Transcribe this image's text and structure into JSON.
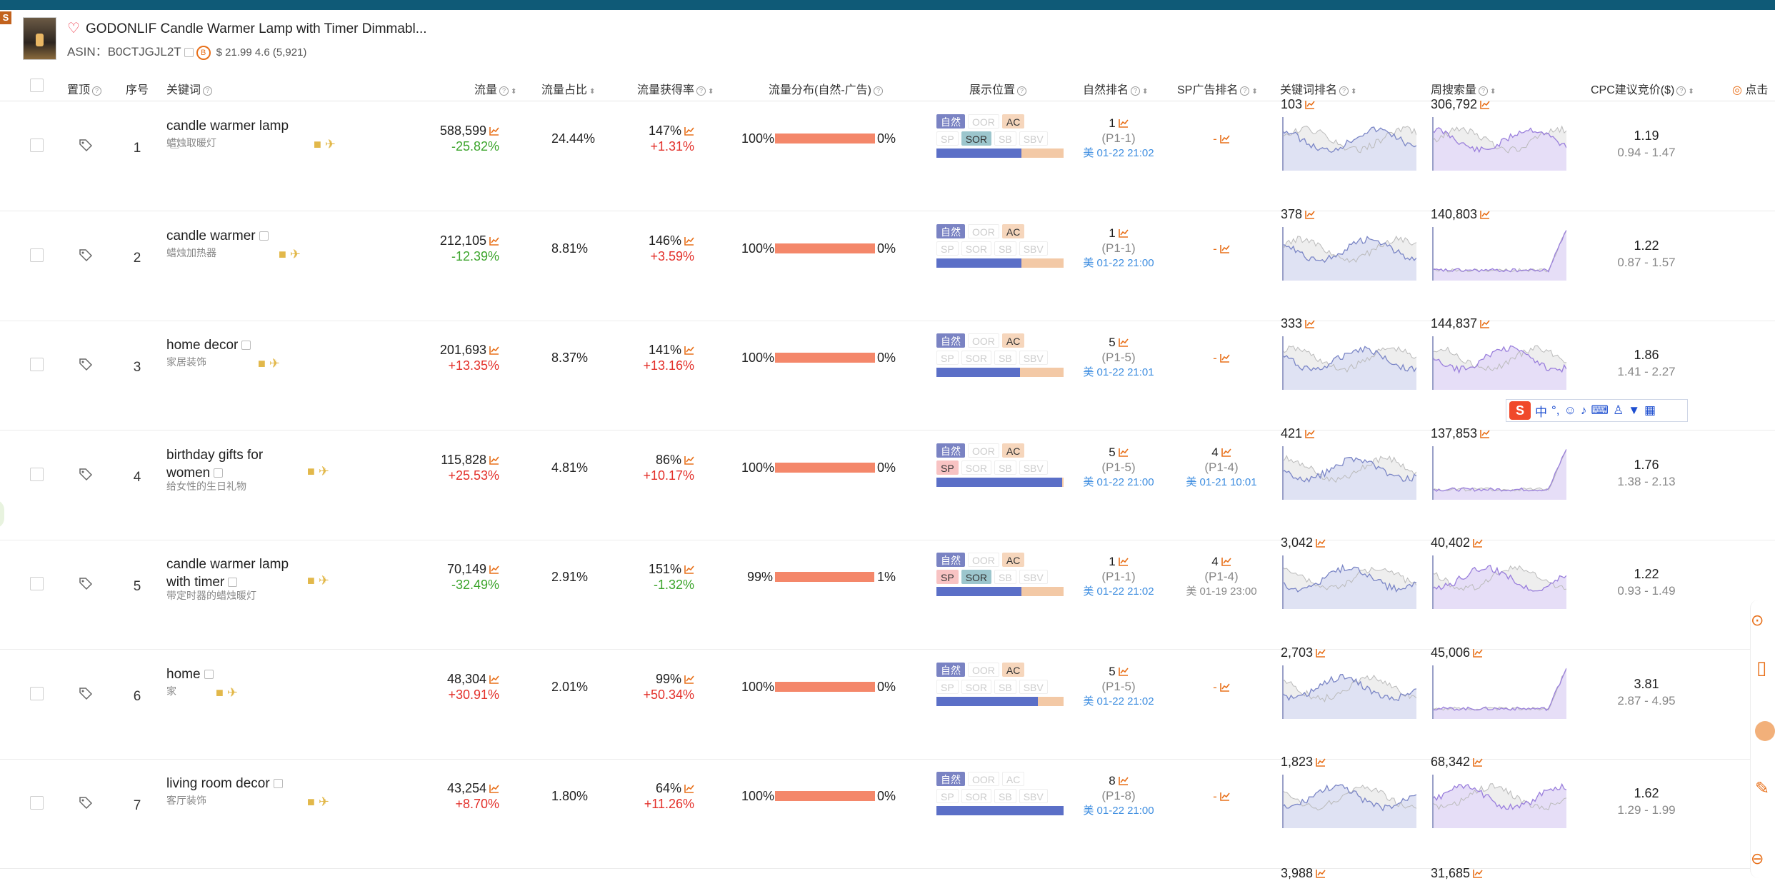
{
  "top_badge": "S",
  "product": {
    "title": "GODONLIF Candle Warmer Lamp with Timer Dimmabl...",
    "asin_label": "ASIN：",
    "asin": "B0CTJGJL2T",
    "badge": "B",
    "price_rating": "$ 21.99 4.6 (5,921)"
  },
  "headers": {
    "pin": "置顶",
    "index": "序号",
    "keyword": "关键词",
    "traffic": "流量",
    "traffic_share": "流量占比",
    "capture_rate": "流量获得率",
    "distribution": "流量分布(自然-广告)",
    "placement": "展示位置",
    "natural_rank": "自然排名",
    "sp_rank": "SP广告排名",
    "keyword_rank": "关键词排名",
    "weekly_search": "周搜索量",
    "cpc": "CPC建议竞价($)",
    "click": "点击"
  },
  "chip_labels": {
    "z": "自然",
    "oor": "OOR",
    "ac": "AC",
    "sp": "SP",
    "sor": "SOR",
    "sb": "SB",
    "sbv": "SBV"
  },
  "rows": [
    {
      "index": "1",
      "keyword": "candle warmer lamp",
      "keyword_cn": "蜡烛取暖灯",
      "traffic": "588,599",
      "traffic_change": "-25.82%",
      "share": "24.44%",
      "rate": "147%",
      "rate_change": "+1.31%",
      "nat_pct": "100%",
      "ad_pct": "0%",
      "nat_frac": 1.0,
      "chips": {
        "z": true,
        "oor": false,
        "ac": true,
        "sp": false,
        "sor": true,
        "sb": false,
        "sbv": false
      },
      "pos_frac": 0.67,
      "nat_rank": "1",
      "nat_page": "(P1-1)",
      "nat_time": "美 01-22 21:02",
      "sp_rank": "",
      "sp_page": "",
      "sp_time": "",
      "kw_rank": "103",
      "weekly": "306,792",
      "cpc": "1.19",
      "cpc_range": "0.94 - 1.47"
    },
    {
      "index": "2",
      "keyword": "candle warmer",
      "keyword_cn": "蜡烛加热器",
      "traffic": "212,105",
      "traffic_change": "-12.39%",
      "share": "8.81%",
      "rate": "146%",
      "rate_change": "+3.59%",
      "nat_pct": "100%",
      "ad_pct": "0%",
      "nat_frac": 1.0,
      "chips": {
        "z": true,
        "oor": false,
        "ac": true,
        "sp": false,
        "sor": false,
        "sb": false,
        "sbv": false
      },
      "pos_frac": 0.67,
      "nat_rank": "1",
      "nat_page": "(P1-1)",
      "nat_time": "美 01-22 21:00",
      "sp_rank": "",
      "sp_page": "",
      "sp_time": "",
      "kw_rank": "378",
      "weekly": "140,803",
      "cpc": "1.22",
      "cpc_range": "0.87 - 1.57"
    },
    {
      "index": "3",
      "keyword": "home decor",
      "keyword_cn": "家居装饰",
      "traffic": "201,693",
      "traffic_change": "+13.35%",
      "share": "8.37%",
      "rate": "141%",
      "rate_change": "+13.16%",
      "nat_pct": "100%",
      "ad_pct": "0%",
      "nat_frac": 1.0,
      "chips": {
        "z": true,
        "oor": false,
        "ac": true,
        "sp": false,
        "sor": false,
        "sb": false,
        "sbv": false
      },
      "pos_frac": 0.66,
      "nat_rank": "5",
      "nat_page": "(P1-5)",
      "nat_time": "美 01-22 21:01",
      "sp_rank": "",
      "sp_page": "",
      "sp_time": "",
      "kw_rank": "333",
      "weekly": "144,837",
      "cpc": "1.86",
      "cpc_range": "1.41 - 2.27"
    },
    {
      "index": "4",
      "keyword": "birthday gifts for women",
      "keyword_cn": "给女性的生日礼物",
      "traffic": "115,828",
      "traffic_change": "+25.53%",
      "share": "4.81%",
      "rate": "86%",
      "rate_change": "+10.17%",
      "nat_pct": "100%",
      "ad_pct": "0%",
      "nat_frac": 1.0,
      "chips": {
        "z": true,
        "oor": false,
        "ac": true,
        "sp": true,
        "sor": false,
        "sb": false,
        "sbv": false
      },
      "pos_frac": 0.99,
      "nat_rank": "5",
      "nat_page": "(P1-5)",
      "nat_time": "美 01-22 21:00",
      "sp_rank": "4",
      "sp_page": "(P1-4)",
      "sp_time": "美 01-21 10:01",
      "kw_rank": "421",
      "weekly": "137,853",
      "cpc": "1.76",
      "cpc_range": "1.38 - 2.13"
    },
    {
      "index": "5",
      "keyword": "candle warmer lamp with timer",
      "keyword_cn": "带定时器的蜡烛暖灯",
      "traffic": "70,149",
      "traffic_change": "-32.49%",
      "share": "2.91%",
      "rate": "151%",
      "rate_change": "-1.32%",
      "nat_pct": "99%",
      "ad_pct": "1%",
      "nat_frac": 0.99,
      "chips": {
        "z": true,
        "oor": false,
        "ac": true,
        "sp": true,
        "sor": true,
        "sb": false,
        "sbv": false
      },
      "pos_frac": 0.67,
      "nat_rank": "1",
      "nat_page": "(P1-1)",
      "nat_time": "美 01-22 21:02",
      "sp_rank": "4",
      "sp_page": "(P1-4)",
      "sp_time": "美 01-19 23:00",
      "kw_rank": "3,042",
      "weekly": "40,402",
      "cpc": "1.22",
      "cpc_range": "0.93 - 1.49"
    },
    {
      "index": "6",
      "keyword": "home",
      "keyword_cn": "家",
      "traffic": "48,304",
      "traffic_change": "+30.91%",
      "share": "2.01%",
      "rate": "99%",
      "rate_change": "+50.34%",
      "nat_pct": "100%",
      "ad_pct": "0%",
      "nat_frac": 1.0,
      "chips": {
        "z": true,
        "oor": false,
        "ac": true,
        "sp": false,
        "sor": false,
        "sb": false,
        "sbv": false
      },
      "pos_frac": 0.8,
      "nat_rank": "5",
      "nat_page": "(P1-5)",
      "nat_time": "美 01-22 21:02",
      "sp_rank": "",
      "sp_page": "",
      "sp_time": "",
      "kw_rank": "2,703",
      "weekly": "45,006",
      "cpc": "3.81",
      "cpc_range": "2.87 - 4.95"
    },
    {
      "index": "7",
      "keyword": "living room decor",
      "keyword_cn": "客厅装饰",
      "traffic": "43,254",
      "traffic_change": "+8.70%",
      "share": "1.80%",
      "rate": "64%",
      "rate_change": "+11.26%",
      "nat_pct": "100%",
      "ad_pct": "0%",
      "nat_frac": 1.0,
      "chips": {
        "z": true,
        "oor": false,
        "ac": false,
        "sp": false,
        "sor": false,
        "sb": false,
        "sbv": false
      },
      "pos_frac": 1.0,
      "nat_rank": "8",
      "nat_page": "(P1-8)",
      "nat_time": "美 01-22 21:00",
      "sp_rank": "",
      "sp_page": "",
      "sp_time": "",
      "kw_rank": "1,823",
      "weekly": "68,342",
      "cpc": "1.62",
      "cpc_range": "1.29 - 1.99"
    }
  ],
  "partial_row": {
    "kw_rank": "3,988",
    "weekly": "31,685"
  },
  "ime": {
    "zh": "中"
  },
  "colors": {
    "topbar": "#0f5a77",
    "bar_red": "#f4876a",
    "pos_blue": "#5b6fc7",
    "pos_peach": "#f3c9a6",
    "trend_icon": "#e8701a"
  }
}
